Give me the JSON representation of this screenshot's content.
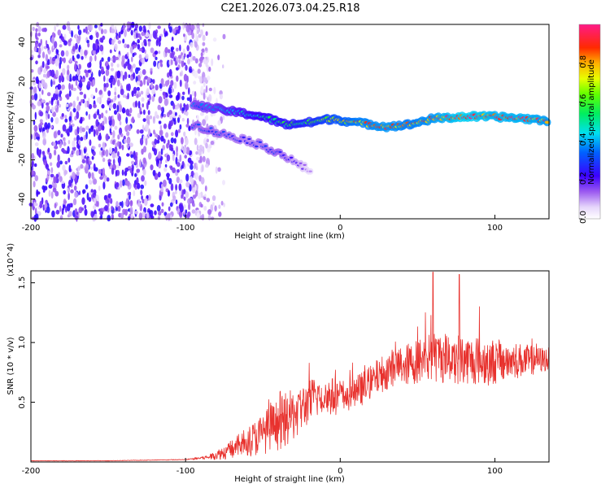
{
  "figure_title": "C2E1.2026.073.04.25.R18",
  "chart_data": [
    {
      "type": "heatmap",
      "title": "C2E1.2026.073.04.25.R18",
      "xlabel": "Height of straight line (km)",
      "ylabel": "Frequency (Hz)",
      "xlim": [
        -200,
        135
      ],
      "ylim": [
        -50,
        49
      ],
      "x_ticks": [
        -200,
        -100,
        0,
        100
      ],
      "x_tick_labels": [
        "-200",
        "-100",
        "0",
        "100"
      ],
      "y_ticks": [
        -40,
        -20,
        0,
        20,
        40
      ],
      "y_tick_labels": [
        "-40",
        "-20",
        "0",
        "20",
        "40"
      ],
      "grid": false,
      "colorbar": {
        "label": "Normalized spectral amplitude",
        "range": [
          0.0,
          1.0
        ],
        "ticks": [
          0.0,
          0.2,
          0.4,
          0.6,
          0.8
        ],
        "tick_labels": [
          "0.0",
          "0.2",
          "0.4",
          "0.6",
          "0.8"
        ],
        "colormap": "rainbow (white-violet-blue-cyan-green-yellow-red-magenta)"
      },
      "features": [
        {
          "name": "broadband noise region",
          "x_range": [
            -200,
            -85
          ],
          "y_range": [
            -50,
            49
          ],
          "amplitude": [
            0.05,
            0.25
          ]
        },
        {
          "name": "main signal trace (km, Hz, amplitude)",
          "points": [
            [
              -95,
              8,
              0.35
            ],
            [
              -80,
              6,
              0.4
            ],
            [
              -65,
              4,
              0.45
            ],
            [
              -50,
              2,
              0.5
            ],
            [
              -35,
              -2,
              0.55
            ],
            [
              -20,
              -1,
              0.6
            ],
            [
              -5,
              1,
              0.7
            ],
            [
              10,
              -1,
              0.8
            ],
            [
              30,
              -3,
              0.85
            ],
            [
              45,
              -2,
              0.8
            ],
            [
              60,
              1,
              0.85
            ],
            [
              80,
              2,
              0.95
            ],
            [
              100,
              2,
              0.9
            ],
            [
              120,
              1,
              0.9
            ],
            [
              135,
              0,
              0.85
            ]
          ]
        },
        {
          "name": "secondary descending branch (km, Hz, amplitude)",
          "points": [
            [
              -95,
              -2,
              0.3
            ],
            [
              -80,
              -6,
              0.3
            ],
            [
              -60,
              -10,
              0.25
            ],
            [
              -40,
              -16,
              0.3
            ],
            [
              -28,
              -22,
              0.2
            ],
            [
              -18,
              -26,
              0.1
            ]
          ]
        }
      ]
    },
    {
      "type": "line",
      "xlabel": "Height of straight line (km)",
      "ylabel": "SNR (10 * v/v)",
      "y_multiplier": "(x10^4)",
      "xlim": [
        -200,
        135
      ],
      "ylim": [
        0,
        1.6
      ],
      "x_ticks": [
        -200,
        -100,
        0,
        100
      ],
      "x_tick_labels": [
        "-200",
        "-100",
        "0",
        "100"
      ],
      "y_ticks": [
        0.5,
        1.0,
        1.5
      ],
      "y_tick_labels": [
        "0.5",
        "1.0",
        "1.5"
      ],
      "grid": false,
      "series": [
        {
          "name": "SNR",
          "color": "#e8322e",
          "envelope_x": [
            -200,
            -150,
            -100,
            -85,
            -75,
            -65,
            -55,
            -45,
            -35,
            -25,
            -15,
            -5,
            5,
            15,
            25,
            35,
            45,
            55,
            65,
            75,
            85,
            95,
            105,
            115,
            125,
            135
          ],
          "envelope_y": [
            0.01,
            0.01,
            0.02,
            0.04,
            0.08,
            0.14,
            0.2,
            0.28,
            0.35,
            0.45,
            0.55,
            0.55,
            0.55,
            0.62,
            0.72,
            0.8,
            0.82,
            0.87,
            0.88,
            0.87,
            0.85,
            0.84,
            0.84,
            0.85,
            0.85,
            0.86
          ],
          "fluctuation_y": [
            0.002,
            0.002,
            0.003,
            0.02,
            0.06,
            0.1,
            0.15,
            0.2,
            0.23,
            0.2,
            0.18,
            0.16,
            0.14,
            0.14,
            0.15,
            0.16,
            0.18,
            0.2,
            0.22,
            0.22,
            0.2,
            0.2,
            0.18,
            0.15,
            0.12,
            0.1
          ],
          "peaks": [
            [
              60,
              1.59
            ],
            [
              77,
              1.57
            ],
            [
              55,
              1.25
            ],
            [
              90,
              1.3
            ]
          ]
        }
      ]
    }
  ]
}
